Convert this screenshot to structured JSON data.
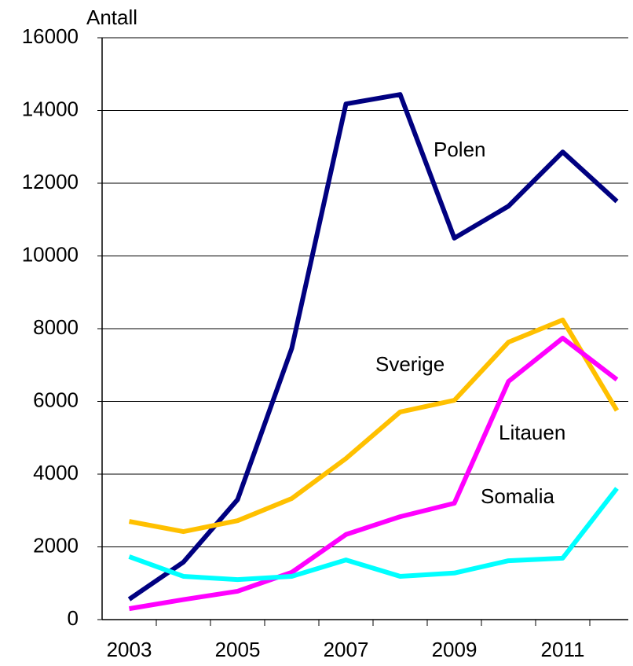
{
  "chart_data": {
    "type": "line",
    "y_label": "Antall",
    "categories": [
      "2003",
      null,
      "2005",
      null,
      "2007",
      null,
      "2009",
      null,
      "2011",
      null
    ],
    "series": [
      {
        "name": "Polen",
        "color": "#000080",
        "values": [
          560,
          1580,
          3300,
          7460,
          14180,
          14440,
          10490,
          11370,
          12860,
          11500
        ]
      },
      {
        "name": "Sverige",
        "color": "#ffc000",
        "values": [
          2700,
          2420,
          2720,
          3330,
          4430,
          5710,
          6030,
          7630,
          8240,
          5750
        ]
      },
      {
        "name": "Litauen",
        "color": "#ff00ff",
        "values": [
          300,
          550,
          780,
          1300,
          2340,
          2830,
          3200,
          6550,
          7740,
          6600
        ]
      },
      {
        "name": "Somalia",
        "color": "#00ffff",
        "values": [
          1730,
          1190,
          1100,
          1190,
          1640,
          1190,
          1280,
          1620,
          1690,
          3610
        ]
      }
    ],
    "ylim": [
      0,
      16000
    ],
    "yticks": [
      0,
      2000,
      4000,
      6000,
      8000,
      10000,
      12000,
      14000,
      16000
    ],
    "grid": true
  }
}
